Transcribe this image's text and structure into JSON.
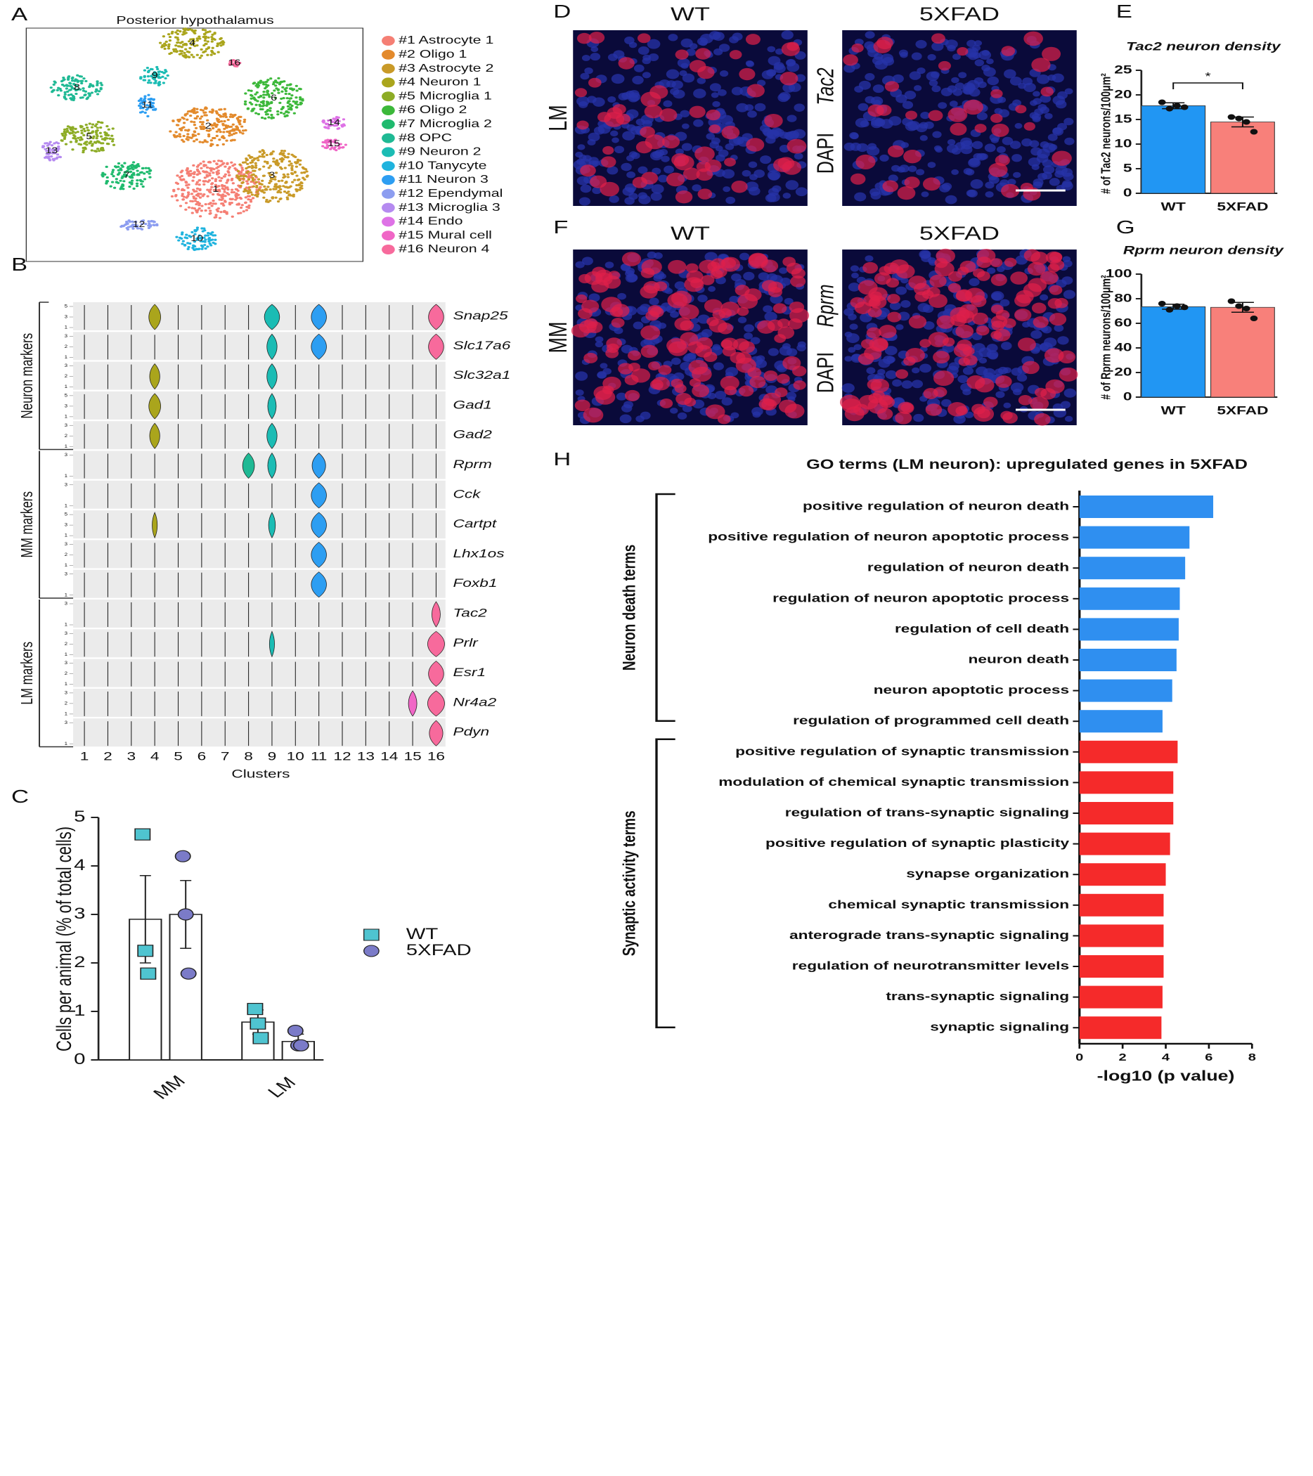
{
  "panel_labels": [
    "A",
    "B",
    "C",
    "D",
    "E",
    "F",
    "G",
    "H"
  ],
  "images": [
    {
      "row_label": "LM",
      "columns": [
        "WT",
        "5XFAD"
      ],
      "stains": [
        "DAPI",
        "Tac2"
      ]
    },
    {
      "row_label": "MM",
      "columns": [
        "WT",
        "5XFAD"
      ],
      "stains": [
        "DAPI",
        "Rprm"
      ]
    }
  ],
  "chart_data": [
    {
      "type": "tsne",
      "title": "Posterior hypothalamus",
      "series": [
        {
          "name": "#1 Astrocyte 1",
          "label": "1",
          "color": "#f57f74"
        },
        {
          "name": "#2 Oligo 1",
          "label": "2",
          "color": "#e38a2c"
        },
        {
          "name": "#3 Astrocyte 2",
          "label": "3",
          "color": "#c99a28"
        },
        {
          "name": "#4 Neuron 1",
          "label": "4",
          "color": "#aaa51c"
        },
        {
          "name": "#5 Microglia 1",
          "label": "5",
          "color": "#8dac26"
        },
        {
          "name": "#6 Oligo 2",
          "label": "6",
          "color": "#3cb83a"
        },
        {
          "name": "#7 Microglia 2",
          "label": "7",
          "color": "#1fba6e"
        },
        {
          "name": "#8 OPC",
          "label": "8",
          "color": "#1fb994"
        },
        {
          "name": "#9 Neuron 2",
          "label": "9",
          "color": "#1bbcb4"
        },
        {
          "name": "#10 Tanycyte",
          "label": "10",
          "color": "#1fb3de"
        },
        {
          "name": "#11 Neuron 3",
          "label": "11",
          "color": "#2d9ef2"
        },
        {
          "name": "#12 Ependymal",
          "label": "12",
          "color": "#8c9df0"
        },
        {
          "name": "#13 Microglia 3",
          "label": "13",
          "color": "#b58af0"
        },
        {
          "name": "#14 Endo",
          "label": "14",
          "color": "#de72e6"
        },
        {
          "name": "#15 Mural cell",
          "label": "15",
          "color": "#f066c6"
        },
        {
          "name": "#16 Neuron 4",
          "label": "16",
          "color": "#f76a9c"
        }
      ]
    },
    {
      "type": "violin",
      "xlabel": "Clusters",
      "categories": [
        "1",
        "2",
        "3",
        "4",
        "5",
        "6",
        "7",
        "8",
        "9",
        "10",
        "11",
        "12",
        "13",
        "14",
        "15",
        "16"
      ],
      "groups": [
        {
          "name": "Neuron markers",
          "series": [
            {
              "name": "Snap25",
              "yticks": [
                1,
                3,
                5
              ],
              "values": [
                0,
                0,
                0,
                0.7,
                0,
                0,
                0,
                0,
                0.9,
                0,
                0.9,
                0,
                0,
                0,
                0,
                0.9
              ]
            },
            {
              "name": "Slc17a6",
              "yticks": [
                1,
                2,
                3
              ],
              "values": [
                0,
                0,
                0,
                0,
                0,
                0,
                0,
                0,
                0.6,
                0,
                0.9,
                0,
                0,
                0,
                0,
                0.9
              ]
            },
            {
              "name": "Slc32a1",
              "yticks": [
                1,
                2,
                3
              ],
              "values": [
                0,
                0,
                0,
                0.6,
                0,
                0,
                0,
                0,
                0.6,
                0,
                0,
                0,
                0,
                0,
                0,
                0
              ]
            },
            {
              "name": "Gad1",
              "yticks": [
                1,
                3,
                5
              ],
              "values": [
                0,
                0,
                0,
                0.7,
                0,
                0,
                0,
                0,
                0.5,
                0,
                0,
                0,
                0,
                0,
                0,
                0
              ]
            },
            {
              "name": "Gad2",
              "yticks": [
                1,
                2,
                3
              ],
              "values": [
                0,
                0,
                0,
                0.6,
                0,
                0,
                0,
                0,
                0.6,
                0,
                0,
                0,
                0,
                0,
                0,
                0
              ]
            }
          ]
        },
        {
          "name": "MM markers",
          "series": [
            {
              "name": "Rprm",
              "yticks": [
                1,
                3
              ],
              "values": [
                0,
                0,
                0,
                0,
                0,
                0,
                0,
                0.7,
                0.5,
                0,
                0.8,
                0,
                0,
                0,
                0,
                0
              ]
            },
            {
              "name": "Cck",
              "yticks": [
                1,
                3
              ],
              "values": [
                0,
                0,
                0,
                0,
                0,
                0,
                0,
                0,
                0,
                0,
                0.9,
                0,
                0,
                0,
                0,
                0
              ]
            },
            {
              "name": "Cartpt",
              "yticks": [
                1,
                3,
                5
              ],
              "values": [
                0,
                0,
                0,
                0.3,
                0,
                0,
                0,
                0,
                0.4,
                0,
                0.9,
                0,
                0,
                0,
                0,
                0
              ]
            },
            {
              "name": "Lhx1os",
              "yticks": [
                1,
                2,
                3
              ],
              "values": [
                0,
                0,
                0,
                0,
                0,
                0,
                0,
                0,
                0,
                0,
                0.9,
                0,
                0,
                0,
                0,
                0
              ]
            },
            {
              "name": "Foxb1",
              "yticks": [
                1,
                3
              ],
              "values": [
                0,
                0,
                0,
                0,
                0,
                0,
                0,
                0,
                0,
                0,
                0.9,
                0,
                0,
                0,
                0,
                0
              ]
            }
          ]
        },
        {
          "name": "LM markers",
          "series": [
            {
              "name": "Tac2",
              "yticks": [
                1,
                3
              ],
              "values": [
                0,
                0,
                0,
                0,
                0,
                0,
                0,
                0,
                0,
                0,
                0,
                0,
                0,
                0,
                0,
                0.5
              ]
            },
            {
              "name": "Prlr",
              "yticks": [
                1,
                2,
                3
              ],
              "values": [
                0,
                0,
                0,
                0,
                0,
                0,
                0,
                0,
                0.3,
                0,
                0,
                0,
                0,
                0,
                0,
                1
              ]
            },
            {
              "name": "Esr1",
              "yticks": [
                1,
                2,
                3
              ],
              "values": [
                0,
                0,
                0,
                0,
                0,
                0,
                0,
                0,
                0,
                0,
                0,
                0,
                0,
                0,
                0,
                0.9
              ]
            },
            {
              "name": "Nr4a2",
              "yticks": [
                1,
                2,
                3
              ],
              "values": [
                0,
                0,
                0,
                0,
                0,
                0,
                0,
                0,
                0,
                0,
                0,
                0,
                0,
                0,
                0.5,
                1
              ]
            },
            {
              "name": "Pdyn",
              "yticks": [
                1,
                3
              ],
              "values": [
                0,
                0,
                0,
                0,
                0,
                0,
                0,
                0,
                0,
                0,
                0,
                0,
                0,
                0,
                0,
                0.8
              ]
            }
          ]
        }
      ]
    },
    {
      "type": "bar_scatter",
      "ylabel": "Cells per animal (% of total cells)",
      "categories": [
        "MM",
        "LM"
      ],
      "ylim": [
        0,
        5
      ],
      "yticks": [
        0,
        1,
        2,
        3,
        4,
        5
      ],
      "series": [
        {
          "name": "WT",
          "color": "#4fc4d0",
          "marker": "square",
          "values": [
            2.9,
            0.78
          ],
          "errors": [
            0.9,
            0.25
          ],
          "points": [
            [
              4.65,
              2.25,
              1.78
            ],
            [
              1.05,
              0.75,
              0.45
            ]
          ]
        },
        {
          "name": "5XFAD",
          "color": "#7b7bc8",
          "marker": "circle",
          "values": [
            3.0,
            0.38
          ],
          "errors": [
            0.7,
            0.15
          ],
          "points": [
            [
              4.2,
              3.0,
              1.78
            ],
            [
              0.6,
              0.3,
              0.3
            ]
          ]
        }
      ]
    },
    {
      "type": "bar_dots",
      "title": "Tac2 neuron density",
      "ylabel": "# of Tac2 neurons/100μm²",
      "categories": [
        "WT",
        "5XFAD"
      ],
      "colors": [
        "#2196f3",
        "#f8807a"
      ],
      "values": [
        17.8,
        14.5
      ],
      "errors": [
        0.6,
        1.0
      ],
      "points": [
        [
          18.5,
          17.2,
          17.8,
          17.5
        ],
        [
          15.5,
          15.2,
          14.5,
          12.5
        ]
      ],
      "ylim": [
        0,
        25
      ],
      "yticks": [
        0,
        5,
        10,
        15,
        20,
        25
      ],
      "annotation": "*"
    },
    {
      "type": "bar_dots",
      "title": "Rprm neuron density",
      "ylabel": "# of Rprm neurons/100μm²",
      "categories": [
        "WT",
        "5XFAD"
      ],
      "colors": [
        "#2196f3",
        "#f8807a"
      ],
      "values": [
        73.5,
        73
      ],
      "errors": [
        2,
        4
      ],
      "points": [
        [
          76,
          71,
          74,
          73
        ],
        [
          78,
          74,
          72,
          64
        ]
      ],
      "ylim": [
        0,
        100
      ],
      "yticks": [
        0,
        20,
        40,
        60,
        80,
        100
      ]
    },
    {
      "type": "hbar",
      "title": "GO terms (LM neuron): upregulated genes in 5XFAD",
      "xlabel": "-log10 (p value)",
      "xlim": [
        0,
        8
      ],
      "xticks": [
        0,
        2,
        4,
        6,
        8
      ],
      "groups": [
        {
          "name": "Neuron death terms",
          "color": "#2f8ff0",
          "categories": [
            "positive regulation of neuron death",
            "positive regulation of neuron apoptotic process",
            "regulation of neuron death",
            "regulation of neuron apoptotic process",
            "regulation of cell death",
            "neuron death",
            "neuron apoptotic process",
            "regulation of programmed cell death"
          ],
          "values": [
            6.2,
            5.1,
            4.9,
            4.65,
            4.6,
            4.5,
            4.3,
            3.85
          ]
        },
        {
          "name": "Synaptic activity terms",
          "color": "#f52a2a",
          "categories": [
            "positive regulation of synaptic transmission",
            "modulation of chemical synaptic transmission",
            "regulation of trans-synaptic signaling",
            "positive regulation of synaptic plasticity",
            "synapse organization",
            "chemical synaptic transmission",
            "anterograde trans-synaptic signaling",
            "regulation of neurotransmitter levels",
            "trans-synaptic signaling",
            "synaptic signaling"
          ],
          "values": [
            4.55,
            4.35,
            4.35,
            4.2,
            4.0,
            3.9,
            3.9,
            3.9,
            3.85,
            3.8
          ]
        }
      ]
    }
  ]
}
